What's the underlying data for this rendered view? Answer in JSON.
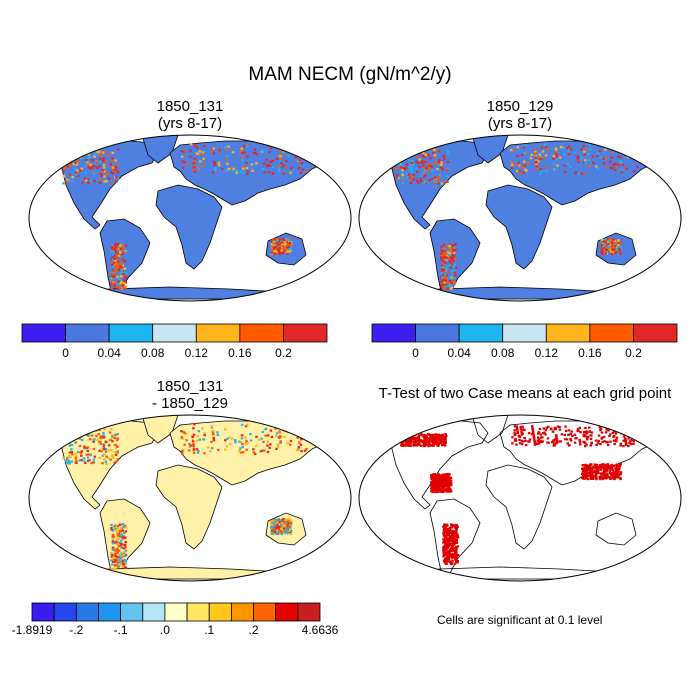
{
  "title": "MAM NECM (gN/m^2/y)",
  "panels": {
    "top_left": {
      "title_line1": "1850_131",
      "title_line2": "(yrs 8-17)"
    },
    "top_right": {
      "title_line1": "1850_129",
      "title_line2": "(yrs 8-17)"
    },
    "bottom_left": {
      "title_line1": "1850_131",
      "title_line2": "- 1850_129"
    },
    "bottom_right": {
      "title_line1": "T-Test of two Case means at each grid point"
    }
  },
  "colorbar_top": {
    "colors": [
      "#3c1ef0",
      "#4b78e0",
      "#1eb4f0",
      "#c8e6f0",
      "#ffb41e",
      "#ff5a00",
      "#e02828"
    ],
    "labels": [
      "0",
      "0.04",
      "0.08",
      "0.12",
      "0.16",
      "0.2"
    ]
  },
  "colorbar_bottom": {
    "colors": [
      "#3a1ef0",
      "#2846f0",
      "#2878e6",
      "#1e96f0",
      "#64c3f0",
      "#b4e6f5",
      "#ffffc8",
      "#ffe664",
      "#ffc81e",
      "#ff9600",
      "#ff6400",
      "#e60000",
      "#c81e1e"
    ],
    "labels": [
      "-1.8919",
      "-.2",
      "-.1",
      ".0",
      ".1",
      ".2",
      "4.6636"
    ]
  },
  "note": "Cells are significant at 0.1 level",
  "map_colors": {
    "ocean": "#ffffff",
    "land_top": "#4f7fe0",
    "land_diff": "#fff2a8",
    "sig": "#e00000",
    "hot1": "#e02828",
    "hot2": "#ff5a00",
    "hot3": "#ffb41e",
    "cyan": "#1eb4f0"
  }
}
